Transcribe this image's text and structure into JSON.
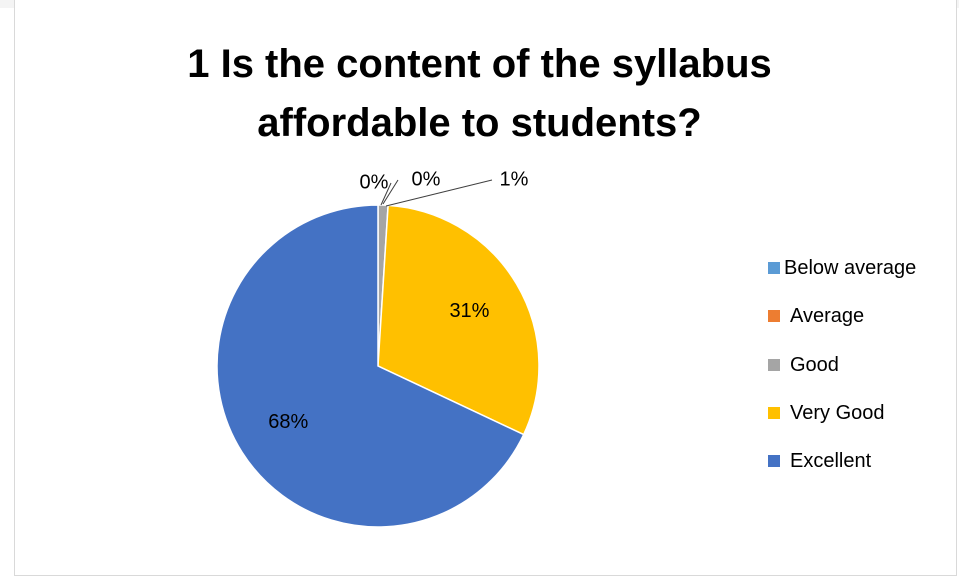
{
  "chart_data": {
    "type": "pie",
    "title_lines": [
      "1 Is the content of the syllabus",
      "affordable to students?"
    ],
    "categories": [
      "Below average",
      "Average",
      "Good",
      "Very Good",
      "Excellent"
    ],
    "values": [
      0,
      0,
      1,
      31,
      68
    ],
    "data_labels": [
      "0%",
      "0%",
      "1%",
      "31%",
      "68%"
    ],
    "colors": [
      "#5b9bd5",
      "#ed7d31",
      "#a5a5a5",
      "#ffc000",
      "#4472c4"
    ],
    "legend_position": "right"
  }
}
